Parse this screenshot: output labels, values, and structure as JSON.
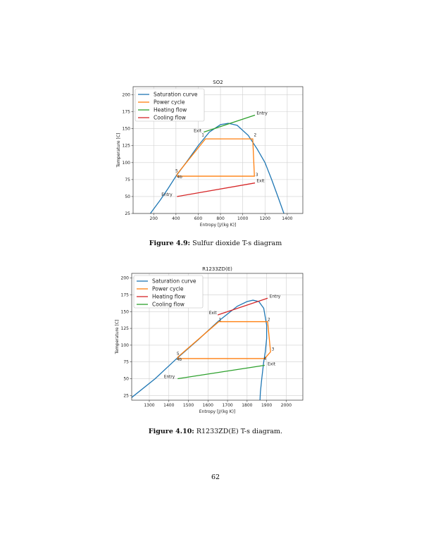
{
  "chart_data": [
    {
      "type": "line",
      "title": "SO2",
      "xlabel": "Entropy [J/(kg K)]",
      "ylabel": "Temperature [C]",
      "xlim": [
        15,
        1540
      ],
      "ylim": [
        25,
        212
      ],
      "xticks": [
        200,
        400,
        600,
        800,
        1000,
        1200,
        1400
      ],
      "yticks": [
        25,
        50,
        75,
        100,
        125,
        150,
        175,
        200
      ],
      "grid": true,
      "legend": "top-left",
      "series": [
        {
          "name": "Saturation curve",
          "color": "#1f77b4",
          "points": [
            [
              170,
              25
            ],
            [
              260,
              45
            ],
            [
              330,
              62
            ],
            [
              400,
              80
            ],
            [
              500,
              102
            ],
            [
              600,
              125
            ],
            [
              700,
              145
            ],
            [
              800,
              156
            ],
            [
              870,
              158
            ],
            [
              950,
              155
            ],
            [
              1050,
              140
            ],
            [
              1130,
              120
            ],
            [
              1200,
              100
            ],
            [
              1260,
              75
            ],
            [
              1320,
              48
            ],
            [
              1370,
              25
            ]
          ]
        },
        {
          "name": "Power cycle",
          "color": "#ff7f0e",
          "points": [
            [
              410,
              83
            ],
            [
              665,
              135
            ],
            [
              1090,
              135
            ],
            [
              1105,
              80
            ],
            [
              410,
              80
            ],
            [
              410,
              83
            ]
          ]
        },
        {
          "name": "Heating flow",
          "color": "#2ca02c",
          "points": [
            [
              650,
              145
            ],
            [
              1110,
              170
            ]
          ]
        },
        {
          "name": "Cooling flow",
          "color": "#d62728",
          "points": [
            [
              410,
              50
            ],
            [
              1110,
              70
            ]
          ]
        }
      ],
      "annotations": [
        {
          "text": "Entry",
          "x": 1125,
          "y": 171
        },
        {
          "text": "Exit",
          "x": 560,
          "y": 145
        },
        {
          "text": "1",
          "x": 630,
          "y": 139
        },
        {
          "text": "2",
          "x": 1100,
          "y": 139
        },
        {
          "text": "3",
          "x": 1115,
          "y": 80
        },
        {
          "text": "5",
          "x": 395,
          "y": 86
        },
        {
          "text": "4b",
          "x": 410,
          "y": 77
        },
        {
          "text": "Exit",
          "x": 1125,
          "y": 71
        },
        {
          "text": "Entry",
          "x": 270,
          "y": 51
        }
      ]
    },
    {
      "type": "line",
      "title": "R1233ZD(E)",
      "xlabel": "Entropy [J/(kg K)]",
      "ylabel": "Temperature [C]",
      "xlim": [
        1210,
        2085
      ],
      "ylim": [
        18,
        207
      ],
      "xticks": [
        1300,
        1400,
        1500,
        1600,
        1700,
        1800,
        1900,
        2000
      ],
      "yticks": [
        25,
        50,
        75,
        100,
        125,
        150,
        175,
        200
      ],
      "grid": true,
      "legend": "top-left",
      "series": [
        {
          "name": "Saturation curve",
          "color": "#1f77b4",
          "points": [
            [
              1210,
              22
            ],
            [
              1330,
              50
            ],
            [
              1440,
              80
            ],
            [
              1550,
              108
            ],
            [
              1650,
              135
            ],
            [
              1750,
              158
            ],
            [
              1800,
              165
            ],
            [
              1830,
              167
            ],
            [
              1860,
              165
            ],
            [
              1885,
              155
            ],
            [
              1900,
              130
            ],
            [
              1900,
              110
            ],
            [
              1893,
              90
            ],
            [
              1885,
              75
            ],
            [
              1875,
              50
            ],
            [
              1868,
              30
            ],
            [
              1866,
              18
            ]
          ]
        },
        {
          "name": "Power cycle",
          "color": "#ff7f0e",
          "points": [
            [
              1445,
              82
            ],
            [
              1655,
              135
            ],
            [
              1905,
              135
            ],
            [
              1920,
              90
            ],
            [
              1890,
              80
            ],
            [
              1445,
              80
            ],
            [
              1445,
              82
            ]
          ]
        },
        {
          "name": "Heating flow",
          "color": "#d62728",
          "points": [
            [
              1650,
              145
            ],
            [
              1905,
              170
            ]
          ]
        },
        {
          "name": "Cooling flow",
          "color": "#2ca02c",
          "points": [
            [
              1445,
              50
            ],
            [
              1890,
              70
            ]
          ]
        }
      ],
      "annotations": [
        {
          "text": "Entry",
          "x": 1915,
          "y": 171
        },
        {
          "text": "Exit",
          "x": 1605,
          "y": 146
        },
        {
          "text": "1",
          "x": 1655,
          "y": 136
        },
        {
          "text": "2",
          "x": 1905,
          "y": 136
        },
        {
          "text": "3",
          "x": 1925,
          "y": 92
        },
        {
          "text": "4",
          "x": 1885,
          "y": 78
        },
        {
          "text": "5",
          "x": 1440,
          "y": 85
        },
        {
          "text": "4b",
          "x": 1440,
          "y": 77
        },
        {
          "text": "Exit",
          "x": 1905,
          "y": 70
        },
        {
          "text": "Entry",
          "x": 1375,
          "y": 51
        }
      ]
    }
  ],
  "captions": [
    {
      "label": "Figure 4.9:",
      "text": "Sulfur dioxide T-s diagram"
    },
    {
      "label": "Figure 4.10:",
      "text": "R1233ZD(E) T-s diagram."
    }
  ],
  "page_number": "62"
}
